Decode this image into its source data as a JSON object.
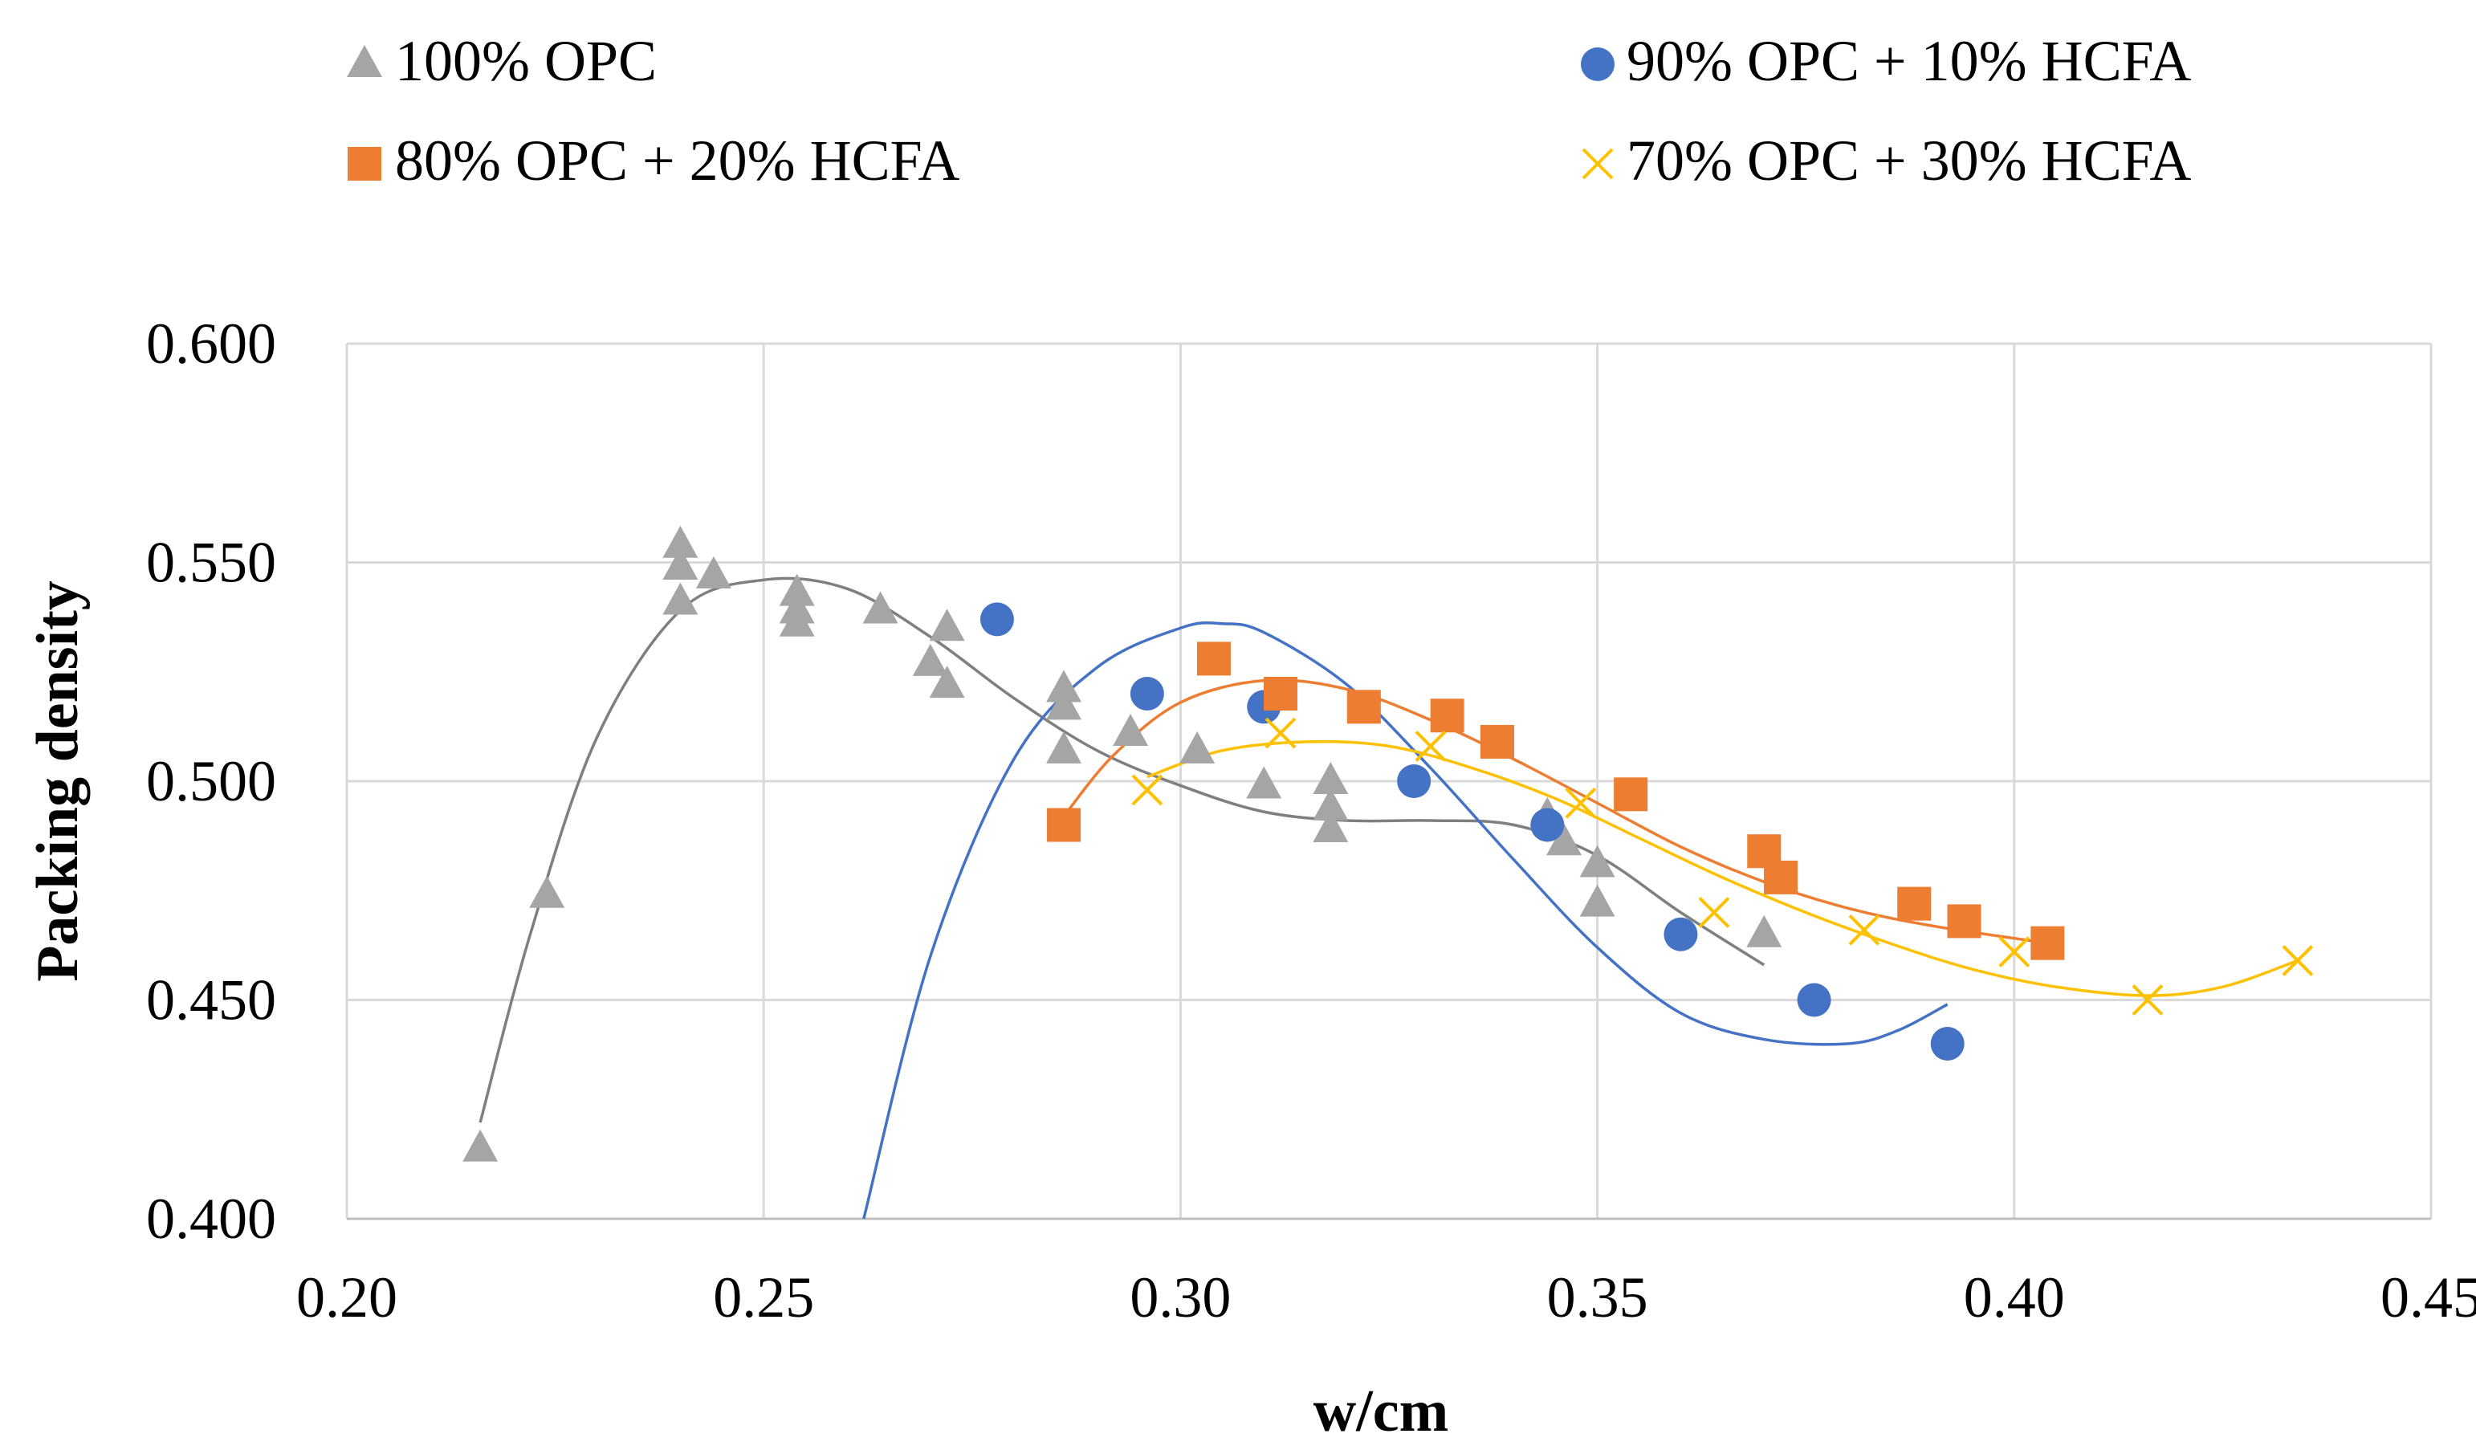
{
  "chart_data": {
    "type": "scatter",
    "title": "",
    "xlabel": "w/cm",
    "ylabel": "Packing density",
    "xlim": [
      0.2,
      0.45
    ],
    "ylim": [
      0.4,
      0.6
    ],
    "xticks": [
      0.2,
      0.25,
      0.3,
      0.35,
      0.4,
      0.45
    ],
    "yticks": [
      0.4,
      0.45,
      0.5,
      0.55,
      0.6
    ],
    "xtick_labels": [
      "0.20",
      "0.25",
      "0.30",
      "0.35",
      "0.40",
      "0.45"
    ],
    "ytick_labels": [
      "0.400",
      "0.450",
      "0.500",
      "0.550",
      "0.600"
    ],
    "grid": true,
    "legend_position": "top",
    "series": [
      {
        "name": "100% OPC",
        "marker": "triangle",
        "color": "#A5A5A5",
        "trend_color": "#7F7F7F",
        "x": [
          0.216,
          0.224,
          0.24,
          0.24,
          0.24,
          0.244,
          0.254,
          0.254,
          0.254,
          0.264,
          0.27,
          0.272,
          0.272,
          0.286,
          0.286,
          0.286,
          0.294,
          0.302,
          0.31,
          0.318,
          0.318,
          0.318,
          0.344,
          0.346,
          0.35,
          0.35,
          0.37
        ],
        "y": [
          0.416,
          0.474,
          0.554,
          0.549,
          0.541,
          0.547,
          0.543,
          0.539,
          0.536,
          0.539,
          0.527,
          0.535,
          0.522,
          0.521,
          0.517,
          0.507,
          0.511,
          0.507,
          0.499,
          0.5,
          0.494,
          0.489,
          0.492,
          0.486,
          0.481,
          0.472,
          0.465
        ],
        "trend": {
          "x": [
            0.216,
            0.222,
            0.23,
            0.24,
            0.25,
            0.26,
            0.27,
            0.28,
            0.29,
            0.3,
            0.31,
            0.32,
            0.33,
            0.34,
            0.35,
            0.36,
            0.37
          ],
          "y": [
            0.422,
            0.465,
            0.51,
            0.539,
            0.546,
            0.544,
            0.533,
            0.519,
            0.507,
            0.499,
            0.493,
            0.491,
            0.491,
            0.49,
            0.483,
            0.47,
            0.458
          ]
        }
      },
      {
        "name": "90% OPC + 10% HCFA",
        "marker": "circle",
        "color": "#4472C4",
        "trend_color": "#4472C4",
        "x": [
          0.278,
          0.296,
          0.31,
          0.328,
          0.344,
          0.36,
          0.376,
          0.392
        ],
        "y": [
          0.537,
          0.52,
          0.517,
          0.5,
          0.49,
          0.465,
          0.45,
          0.44
        ],
        "trend": {
          "x": [
            0.262,
            0.27,
            0.28,
            0.29,
            0.3,
            0.305,
            0.31,
            0.32,
            0.33,
            0.34,
            0.35,
            0.36,
            0.37,
            0.38,
            0.386,
            0.392
          ],
          "y": [
            0.4,
            0.46,
            0.505,
            0.526,
            0.535,
            0.536,
            0.534,
            0.522,
            0.503,
            0.482,
            0.462,
            0.447,
            0.441,
            0.44,
            0.443,
            0.449
          ]
        }
      },
      {
        "name": "80% OPC + 20% HCFA",
        "marker": "square",
        "color": "#ED7D31",
        "trend_color": "#ED7D31",
        "x": [
          0.286,
          0.304,
          0.312,
          0.322,
          0.332,
          0.338,
          0.354,
          0.37,
          0.372,
          0.388,
          0.394,
          0.404
        ],
        "y": [
          0.49,
          0.528,
          0.52,
          0.517,
          0.515,
          0.509,
          0.497,
          0.484,
          0.478,
          0.472,
          0.468,
          0.463
        ]
      },
      {
        "name": "70% OPC + 30% HCFA",
        "marker": "x",
        "color": "#FFC000",
        "trend_color": "#FFC000",
        "x": [
          0.296,
          0.312,
          0.33,
          0.348,
          0.364,
          0.382,
          0.4,
          0.416,
          0.434
        ],
        "y": [
          0.498,
          0.511,
          0.508,
          0.495,
          0.47,
          0.466,
          0.461,
          0.45,
          0.459
        ]
      }
    ],
    "trends_extra": [
      {
        "series": "80% OPC + 20% HCFA",
        "x": [
          0.286,
          0.292,
          0.3,
          0.31,
          0.32,
          0.33,
          0.34,
          0.35,
          0.36,
          0.37,
          0.38,
          0.39,
          0.404
        ],
        "y": [
          0.492,
          0.506,
          0.518,
          0.523,
          0.521,
          0.514,
          0.505,
          0.495,
          0.485,
          0.477,
          0.471,
          0.467,
          0.463
        ]
      },
      {
        "series": "70% OPC + 30% HCFA",
        "x": [
          0.296,
          0.305,
          0.315,
          0.325,
          0.335,
          0.345,
          0.355,
          0.365,
          0.375,
          0.385,
          0.395,
          0.405,
          0.416,
          0.425,
          0.434
        ],
        "y": [
          0.501,
          0.507,
          0.509,
          0.508,
          0.503,
          0.496,
          0.487,
          0.478,
          0.47,
          0.463,
          0.457,
          0.453,
          0.451,
          0.453,
          0.459
        ]
      }
    ]
  }
}
